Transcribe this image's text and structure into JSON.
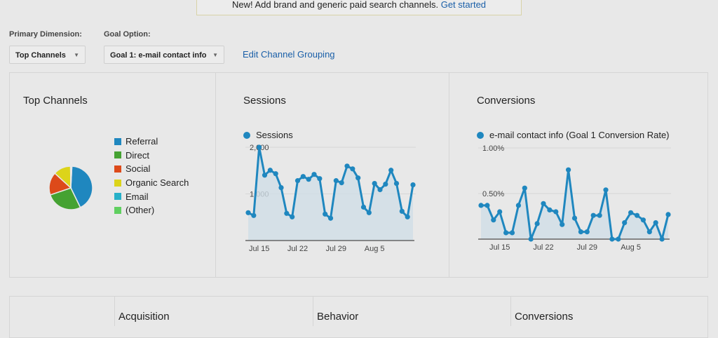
{
  "notice": {
    "text": "New! Add brand and generic paid search channels.",
    "link": "Get started"
  },
  "controls": {
    "primary_label": "Primary Dimension:",
    "primary_value": "Top Channels",
    "goal_label": "Goal Option:",
    "goal_value": "Goal 1: e-mail contact info",
    "edit_link": "Edit Channel Grouping"
  },
  "panels": {
    "top_channels": "Top Channels",
    "sessions": "Sessions",
    "conversions": "Conversions"
  },
  "colors": {
    "line": "#1f87bf",
    "fill": "#cfdde6"
  },
  "chart_data": [
    {
      "type": "pie",
      "title": "Top Channels",
      "legend": [
        {
          "label": "Referral",
          "value": 42,
          "color": "#1f87bf"
        },
        {
          "label": "Direct",
          "value": 27,
          "color": "#45a232"
        },
        {
          "label": "Social",
          "value": 17,
          "color": "#dd4a1a"
        },
        {
          "label": "Organic Search",
          "value": 13,
          "color": "#dcd41a"
        },
        {
          "label": "Email",
          "value": 0.5,
          "color": "#27b0c8"
        },
        {
          "label": "(Other)",
          "value": 0.5,
          "color": "#60cf60"
        }
      ]
    },
    {
      "type": "area",
      "title": "Sessions",
      "legend": "Sessions",
      "ylim": [
        0,
        2000
      ],
      "yticks": [
        "2,000",
        "1,000"
      ],
      "ytick_values": [
        2000,
        1000
      ],
      "xticks": [
        {
          "label": "Jul 15",
          "index": 2
        },
        {
          "label": "Jul 22",
          "index": 9
        },
        {
          "label": "Jul 29",
          "index": 16
        },
        {
          "label": "Aug 5",
          "index": 23
        }
      ],
      "values": [
        597,
        537,
        2000,
        1402,
        1507,
        1433,
        1134,
        582,
        507,
        1284,
        1373,
        1313,
        1418,
        1328,
        567,
        478,
        1284,
        1239,
        1597,
        1537,
        1343,
        716,
        597,
        1224,
        1090,
        1209,
        1507,
        1224,
        627,
        507,
        1194
      ]
    },
    {
      "type": "area",
      "title": "Conversions",
      "legend": "e-mail contact info (Goal 1 Conversion Rate)",
      "ylim": [
        0,
        1.0
      ],
      "yticks": [
        "1.00%",
        "0.50%"
      ],
      "ytick_values": [
        1.0,
        0.5
      ],
      "xticks": [
        {
          "label": "Jul 15",
          "index": 3
        },
        {
          "label": "Jul 22",
          "index": 10
        },
        {
          "label": "Jul 29",
          "index": 17
        },
        {
          "label": "Aug 5",
          "index": 24
        }
      ],
      "values": [
        0.37,
        0.37,
        0.21,
        0.3,
        0.07,
        0.07,
        0.37,
        0.56,
        0,
        0.17,
        0.39,
        0.32,
        0.3,
        0.16,
        0.76,
        0.23,
        0.08,
        0.08,
        0.26,
        0.26,
        0.54,
        0,
        0,
        0.18,
        0.29,
        0.26,
        0.21,
        0.08,
        0.18,
        0,
        0.27
      ]
    }
  ],
  "table": {
    "headers": [
      "Acquisition",
      "Behavior",
      "Conversions"
    ]
  }
}
